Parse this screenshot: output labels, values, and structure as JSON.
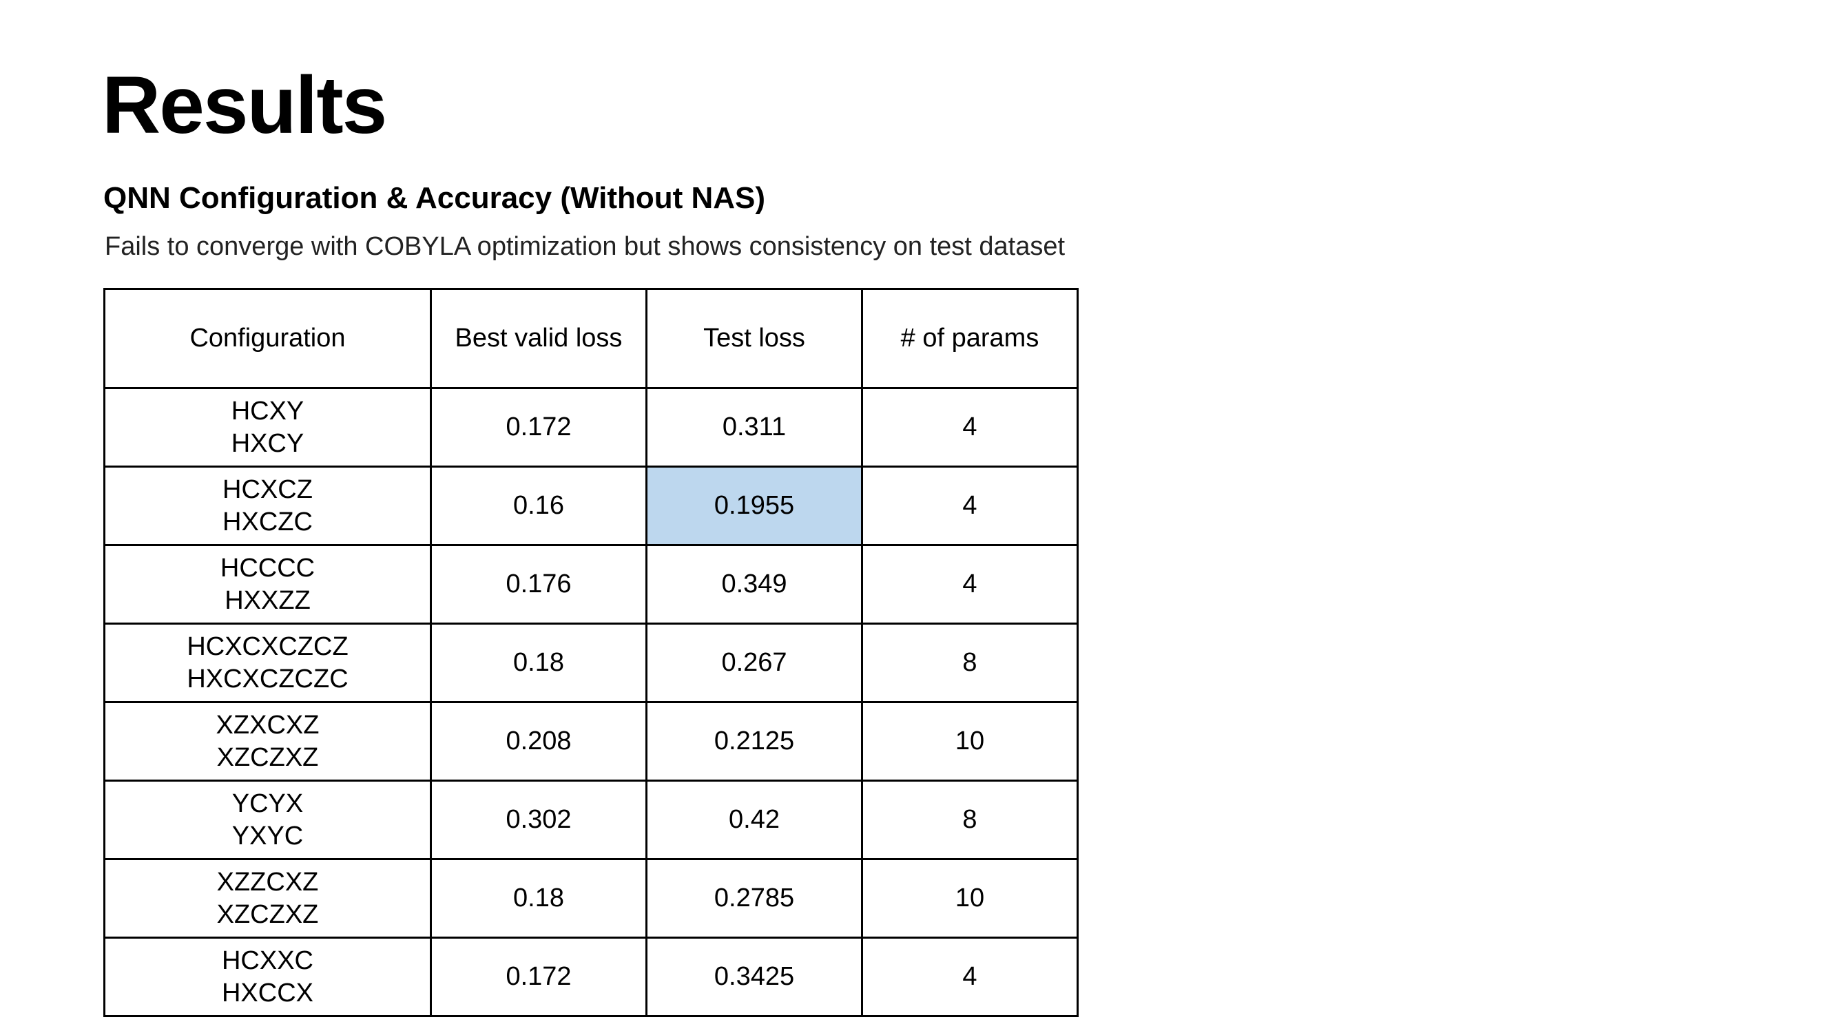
{
  "slide": {
    "title": "Results",
    "subtitle": "QNN Configuration & Accuracy (Without NAS)",
    "description": "Fails to converge with COBYLA optimization but shows consistency on test dataset"
  },
  "table": {
    "headers": [
      "Configuration",
      "Best valid loss",
      "Test loss",
      "# of params"
    ],
    "rows": [
      {
        "config": [
          "HCXY",
          "HXCY"
        ],
        "best_valid_loss": "0.172",
        "test_loss": "0.311",
        "params": "4"
      },
      {
        "config": [
          "HCXCZ",
          "HXCZC"
        ],
        "best_valid_loss": "0.16",
        "test_loss": "0.1955",
        "params": "4"
      },
      {
        "config": [
          "HCCCC",
          "HXXZZ"
        ],
        "best_valid_loss": "0.176",
        "test_loss": "0.349",
        "params": "4"
      },
      {
        "config": [
          "HCXCXCZCZ",
          "HXCXCZCZC"
        ],
        "best_valid_loss": "0.18",
        "test_loss": "0.267",
        "params": "8"
      },
      {
        "config": [
          "XZXCXZ",
          "XZCZXZ"
        ],
        "best_valid_loss": "0.208",
        "test_loss": "0.2125",
        "params": "10"
      },
      {
        "config": [
          "YCYX",
          "YXYC"
        ],
        "best_valid_loss": "0.302",
        "test_loss": "0.42",
        "params": "8"
      },
      {
        "config": [
          "XZZCXZ",
          "XZCZXZ"
        ],
        "best_valid_loss": "0.18",
        "test_loss": "0.2785",
        "params": "10"
      },
      {
        "config": [
          "HCXXC",
          "HXCCX"
        ],
        "best_valid_loss": "0.172",
        "test_loss": "0.3425",
        "params": "4"
      }
    ],
    "highlight_color": "#bdd7ee"
  }
}
